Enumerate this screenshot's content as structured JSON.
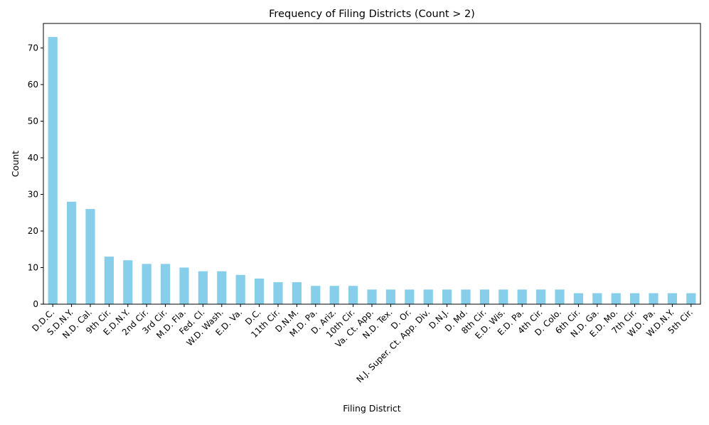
{
  "chart_data": {
    "type": "bar",
    "title": "Frequency of Filing Districts (Count > 2)",
    "xlabel": "Filing District",
    "ylabel": "Count",
    "ylim": [
      0,
      76.7
    ],
    "yticks": [
      0,
      10,
      20,
      30,
      40,
      50,
      60,
      70
    ],
    "grid": false,
    "bar_color": "#87CEEB",
    "categories": [
      "D.D.C.",
      "S.D.N.Y.",
      "N.D. Cal.",
      "9th Cir.",
      "E.D.N.Y.",
      "2nd Cir.",
      "3rd Cir.",
      "M.D. Fla.",
      "Fed. Cl.",
      "W.D. Wash.",
      "E.D. Va.",
      "D.C.",
      "11th Cir.",
      "D.N.M.",
      "M.D. Pa.",
      "D. Ariz.",
      "10th Cir.",
      "Va. Ct. App.",
      "N.D. Tex.",
      "D. Or.",
      "N.J. Super. Ct. App. Div.",
      "D.N.J.",
      "D. Md.",
      "8th Cir.",
      "E.D. Wis.",
      "E.D. Pa.",
      "4th Cir.",
      "D. Colo.",
      "6th Cir.",
      "N.D. Ga.",
      "E.D. Mo.",
      "7th Cir.",
      "W.D. Pa.",
      "W.D.N.Y.",
      "5th Cir."
    ],
    "values": [
      73,
      28,
      26,
      13,
      12,
      11,
      11,
      10,
      9,
      9,
      8,
      7,
      6,
      6,
      5,
      5,
      5,
      4,
      4,
      4,
      4,
      4,
      4,
      4,
      4,
      4,
      4,
      4,
      3,
      3,
      3,
      3,
      3,
      3,
      3
    ]
  }
}
